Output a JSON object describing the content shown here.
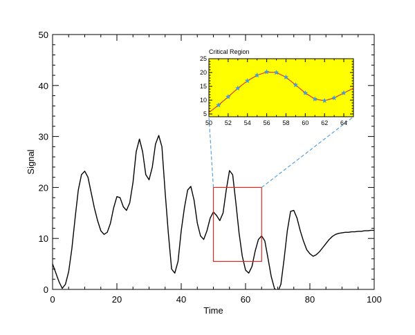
{
  "chart_data": [
    {
      "type": "line",
      "xlabel": "Time",
      "ylabel": "Signal",
      "xlim": [
        0,
        100
      ],
      "ylim": [
        0,
        50
      ],
      "xticks": [
        0,
        20,
        40,
        60,
        80,
        100
      ],
      "yticks": [
        0,
        10,
        20,
        30,
        40,
        50
      ],
      "grid": false,
      "series": [
        {
          "color": "#000000",
          "x": [
            0,
            2,
            3,
            4,
            5,
            6,
            7,
            8,
            9,
            10,
            11,
            12,
            13,
            14,
            15,
            16,
            17,
            18,
            19,
            20,
            21,
            22,
            23,
            24,
            25,
            26,
            27,
            28,
            29,
            30,
            31,
            32,
            33,
            34,
            35,
            36,
            37,
            38,
            39,
            40,
            41,
            42,
            43,
            44,
            45,
            46,
            47,
            48,
            49,
            50,
            51,
            52,
            53,
            54,
            55,
            56,
            57,
            58,
            59,
            60,
            61,
            62,
            63,
            64,
            65,
            66,
            67,
            68,
            69,
            70,
            71,
            72,
            73,
            74,
            75,
            76,
            77,
            78,
            79,
            80,
            81,
            82,
            83,
            84,
            85,
            86,
            87,
            88,
            89,
            90,
            91,
            92,
            93,
            94,
            95,
            96,
            97,
            98,
            99,
            100
          ],
          "y": [
            5,
            1.5,
            0.2,
            1,
            3.5,
            8,
            14,
            19.5,
            22.5,
            23.2,
            22,
            19,
            16,
            13.5,
            11.5,
            10.8,
            11.2,
            13,
            16,
            18.2,
            18,
            16.2,
            15.5,
            17,
            21,
            27,
            29.5,
            27,
            22.5,
            21.5,
            24,
            28.5,
            30.2,
            28,
            19,
            11,
            4,
            3.2,
            5.5,
            11.5,
            16,
            19.5,
            20.2,
            17.5,
            13,
            10.5,
            9.8,
            11.5,
            14,
            15.2,
            14.5,
            13.5,
            15,
            19.5,
            23.3,
            22.5,
            17,
            11,
            6.5,
            3.8,
            3.2,
            4.5,
            7.5,
            9.8,
            10.5,
            9.5,
            6,
            2.5,
            0.2,
            -0.5,
            1,
            6,
            11.5,
            15.3,
            15.5,
            14,
            11.5,
            9.5,
            7.8,
            7,
            6.5,
            6.8,
            7.4,
            8.2,
            9.0,
            9.8,
            10.4,
            10.8,
            11.0,
            11.1,
            11.2,
            11.2,
            11.3,
            11.3,
            11.4,
            11.4,
            11.5,
            11.5,
            11.6,
            11.6
          ]
        }
      ],
      "annotations": {
        "zoom_box": {
          "x": [
            50,
            65
          ],
          "y": [
            5.5,
            20
          ],
          "color": "#e0261f"
        },
        "connector_color": "#4a9ad8"
      }
    },
    {
      "type": "line",
      "title": "Critical Region",
      "xlim": [
        50,
        65
      ],
      "ylim": [
        4,
        25
      ],
      "xticks": [
        50,
        52,
        54,
        56,
        58,
        60,
        62,
        64
      ],
      "yticks": [
        5,
        10,
        15,
        20,
        25
      ],
      "background": "#ffff00",
      "series": [
        {
          "color": "#e0261f",
          "marker": "star",
          "marker_color": "#4a9ad8",
          "x": [
            50,
            51,
            52,
            53,
            54,
            55,
            56,
            57,
            58,
            59,
            60,
            61,
            62,
            63,
            64,
            65
          ],
          "y": [
            5.5,
            8.2,
            11.2,
            14.3,
            17,
            19,
            20.2,
            20,
            18.3,
            15.5,
            12.6,
            10.4,
            9.8,
            10.8,
            12.6,
            14.3
          ]
        }
      ]
    }
  ]
}
